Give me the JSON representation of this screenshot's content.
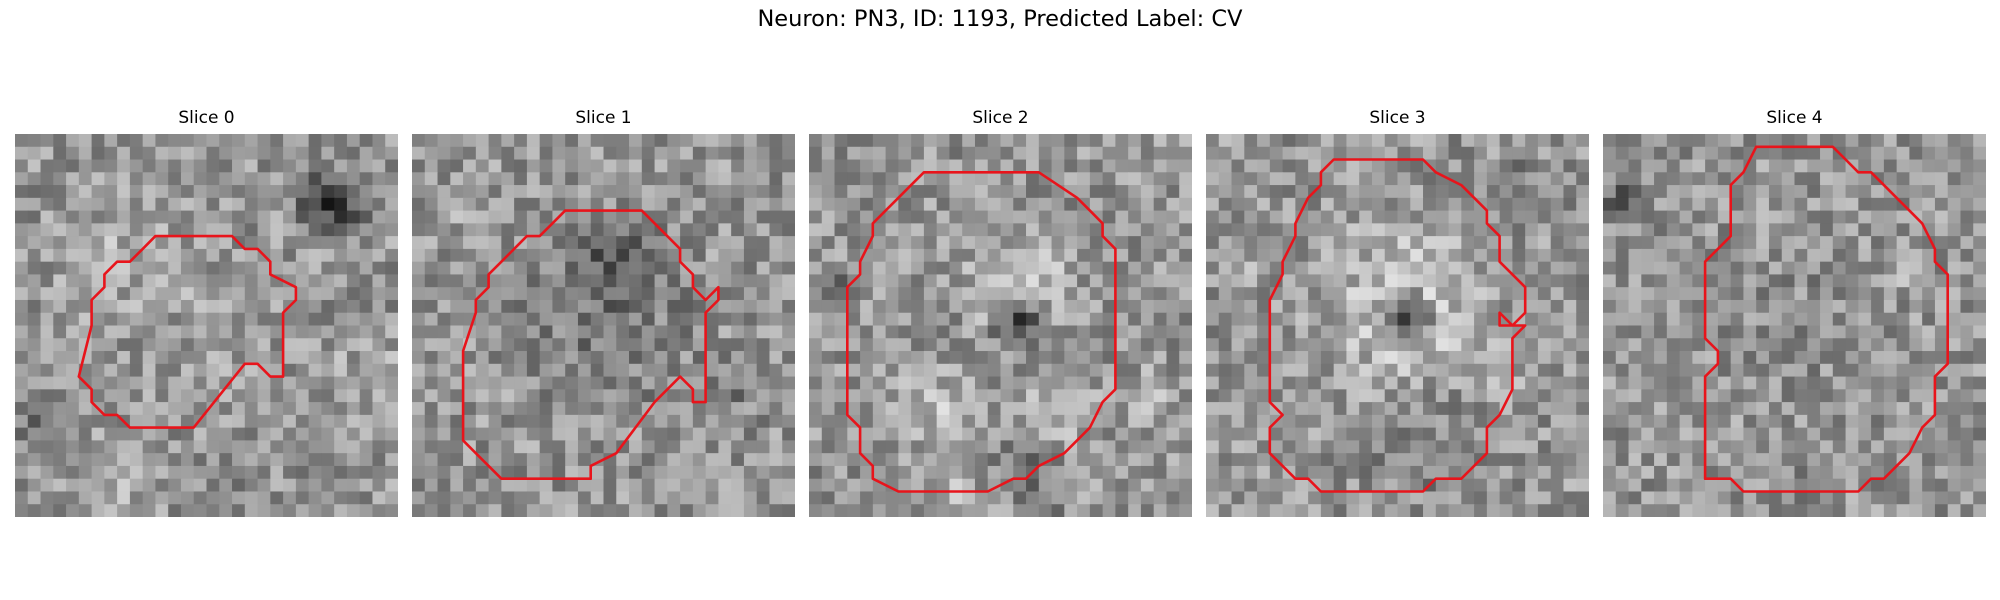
{
  "figure": {
    "title": "Neuron: PN3, ID: 1193, Predicted Label: CV"
  },
  "panels": [
    {
      "title": "Slice 0",
      "texture_seed": 11,
      "contour_color": "#e8141b"
    },
    {
      "title": "Slice 1",
      "texture_seed": 23,
      "contour_color": "#e8141b"
    },
    {
      "title": "Slice 2",
      "texture_seed": 37,
      "contour_color": "#e8141b"
    },
    {
      "title": "Slice 3",
      "texture_seed": 41,
      "contour_color": "#e8141b"
    },
    {
      "title": "Slice 4",
      "texture_seed": 53,
      "contour_color": "#e8141b"
    }
  ]
}
